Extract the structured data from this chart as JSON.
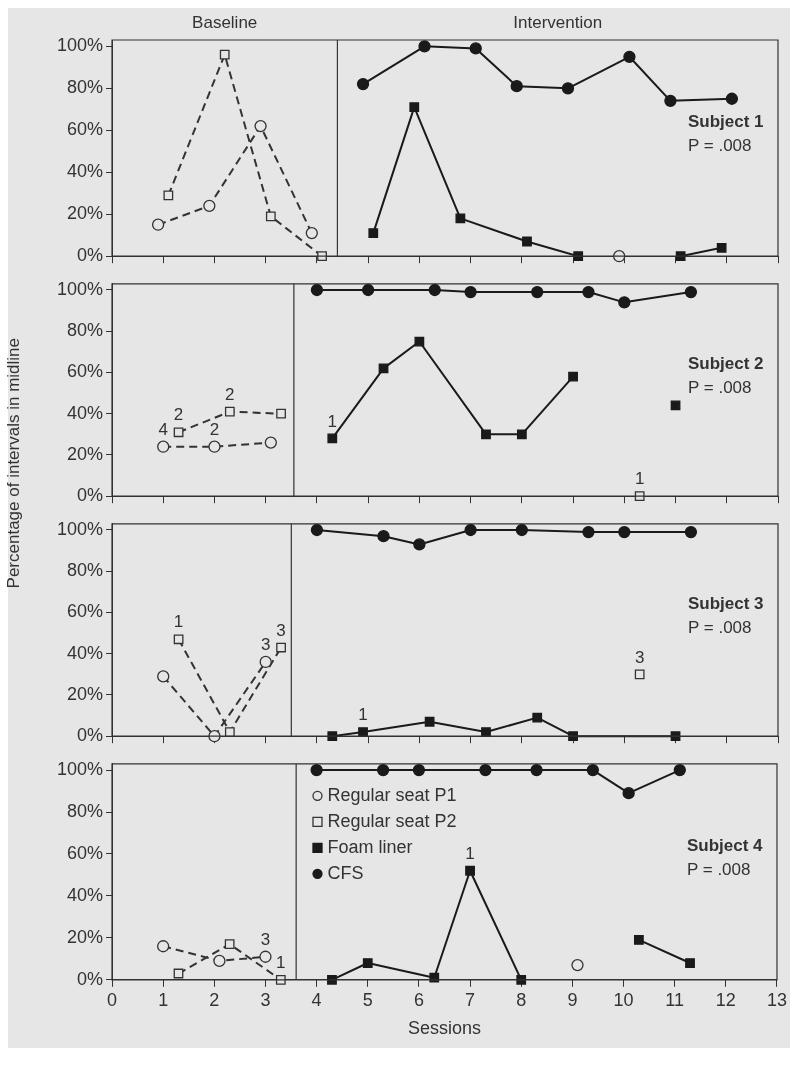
{
  "chart_data": [
    {
      "type": "line",
      "title": "Subject 1",
      "subtitle": "P = .008",
      "xlim": [
        0,
        13
      ],
      "ylim": [
        0,
        103
      ],
      "xticks": [
        {
          "value": 0,
          "label": null
        },
        {
          "value": 1,
          "label": null
        },
        {
          "value": 2,
          "label": null
        },
        {
          "value": 3,
          "label": null
        },
        {
          "value": 4,
          "label": null
        },
        {
          "value": 5,
          "label": null
        },
        {
          "value": 6,
          "label": null
        },
        {
          "value": 7,
          "label": null
        },
        {
          "value": 8,
          "label": null
        },
        {
          "value": 9,
          "label": null
        },
        {
          "value": 10,
          "label": null
        },
        {
          "value": 11,
          "label": null
        },
        {
          "value": 12,
          "label": null
        },
        {
          "value": 13,
          "label": null
        }
      ],
      "yticks": [
        {
          "value": 0,
          "label": "0%"
        },
        {
          "value": 20,
          "label": "20%"
        },
        {
          "value": 40,
          "label": "40%"
        },
        {
          "value": 60,
          "label": "60%"
        },
        {
          "value": 80,
          "label": "80%"
        },
        {
          "value": 100,
          "label": "100%"
        }
      ],
      "tick_labels": "y",
      "grid": false,
      "ref_lines": [
        {
          "axis": "x",
          "value": 4.4,
          "label": null,
          "color": "#333333"
        }
      ],
      "annotations": [
        "Baseline",
        "Intervention"
      ],
      "series": [
        {
          "color": "#333333",
          "marker": "circle",
          "line_style": "dashed",
          "x": [
            0.9,
            1.9,
            2.9,
            3.9,
            7,
            9.9
          ],
          "values": [
            15,
            24,
            62,
            11,
            null,
            0
          ]
        },
        {
          "color": "#333333",
          "marker": "square",
          "line_style": "dashed",
          "x": [
            1.1,
            2.2,
            3.1,
            4.1
          ],
          "values": [
            29,
            96,
            19,
            0
          ]
        },
        {
          "color": "#1a1a1a",
          "marker": "square",
          "line_style": "solid",
          "x": [
            5.1,
            5.9,
            6.8,
            8.1,
            9.1,
            10,
            11.1,
            11.9
          ],
          "values": [
            11,
            71,
            18,
            7,
            0,
            null,
            0,
            4
          ]
        },
        {
          "color": "#1a1a1a",
          "marker": "circle",
          "line_style": "solid",
          "x": [
            4.9,
            6.1,
            7.1,
            7.9,
            8.9,
            10.1,
            10.9,
            12.1
          ],
          "values": [
            82,
            100,
            99,
            81,
            80,
            95,
            74,
            75
          ]
        }
      ]
    },
    {
      "type": "line",
      "title": "Subject 2",
      "subtitle": "P = .008",
      "ylabel": "Percentage of intervals in midline",
      "xlim": [
        0,
        13
      ],
      "ylim": [
        0,
        103
      ],
      "xticks": [
        {
          "value": 0,
          "label": null
        },
        {
          "value": 1,
          "label": null
        },
        {
          "value": 2,
          "label": null
        },
        {
          "value": 3,
          "label": null
        },
        {
          "value": 4,
          "label": null
        },
        {
          "value": 5,
          "label": null
        },
        {
          "value": 6,
          "label": null
        },
        {
          "value": 7,
          "label": null
        },
        {
          "value": 8,
          "label": null
        },
        {
          "value": 9,
          "label": null
        },
        {
          "value": 10,
          "label": null
        },
        {
          "value": 11,
          "label": null
        },
        {
          "value": 12,
          "label": null
        },
        {
          "value": 13,
          "label": null
        }
      ],
      "yticks": [
        {
          "value": 0,
          "label": "0%"
        },
        {
          "value": 20,
          "label": "20%"
        },
        {
          "value": 40,
          "label": "40%"
        },
        {
          "value": 60,
          "label": "60%"
        },
        {
          "value": 80,
          "label": "80%"
        },
        {
          "value": 100,
          "label": "100%"
        }
      ],
      "tick_labels": "y",
      "grid": false,
      "ref_lines": [
        {
          "axis": "x",
          "value": 3.55,
          "label": null,
          "color": "#333333"
        }
      ],
      "annotations": [
        {
          "text": "4",
          "x": 1.0,
          "y": 24
        },
        {
          "text": "2",
          "x": 1.3,
          "y": 31
        },
        {
          "text": "2",
          "x": 2.0,
          "y": 24
        },
        {
          "text": "2",
          "x": 2.3,
          "y": 41
        },
        {
          "text": "1",
          "x": 4.3,
          "y": 28
        },
        {
          "text": "1",
          "x": 10.3,
          "y": 0
        }
      ],
      "series": [
        {
          "color": "#333333",
          "marker": "circle",
          "line_style": "dashed",
          "x": [
            1.0,
            2.0,
            3.1
          ],
          "values": [
            24,
            24,
            26
          ]
        },
        {
          "color": "#333333",
          "marker": "square",
          "line_style": "dashed",
          "x": [
            1.3,
            2.3,
            3.3,
            7,
            10.3
          ],
          "values": [
            31,
            41,
            40,
            null,
            0
          ]
        },
        {
          "color": "#1a1a1a",
          "marker": "square",
          "line_style": "solid",
          "x": [
            4.3,
            5.3,
            6.0,
            7.3,
            8.0,
            9.0,
            10,
            11.0
          ],
          "values": [
            28,
            62,
            75,
            30,
            30,
            58,
            null,
            44
          ]
        },
        {
          "color": "#1a1a1a",
          "marker": "circle",
          "line_style": "solid",
          "x": [
            4.0,
            5.0,
            6.3,
            7.0,
            8.3,
            9.3,
            10.0,
            11.3
          ],
          "values": [
            100,
            100,
            100,
            99,
            99,
            99,
            94,
            99
          ]
        }
      ]
    },
    {
      "type": "line",
      "title": "Subject 3",
      "subtitle": "P = .008",
      "xlim": [
        0,
        13
      ],
      "ylim": [
        0,
        103
      ],
      "xticks": [
        {
          "value": 0,
          "label": null
        },
        {
          "value": 1,
          "label": null
        },
        {
          "value": 2,
          "label": null
        },
        {
          "value": 3,
          "label": null
        },
        {
          "value": 4,
          "label": null
        },
        {
          "value": 5,
          "label": null
        },
        {
          "value": 6,
          "label": null
        },
        {
          "value": 7,
          "label": null
        },
        {
          "value": 8,
          "label": null
        },
        {
          "value": 9,
          "label": null
        },
        {
          "value": 10,
          "label": null
        },
        {
          "value": 11,
          "label": null
        },
        {
          "value": 12,
          "label": null
        },
        {
          "value": 13,
          "label": null
        }
      ],
      "yticks": [
        {
          "value": 0,
          "label": "0%"
        },
        {
          "value": 20,
          "label": "20%"
        },
        {
          "value": 40,
          "label": "40%"
        },
        {
          "value": 60,
          "label": "60%"
        },
        {
          "value": 80,
          "label": "80%"
        },
        {
          "value": 100,
          "label": "100%"
        }
      ],
      "tick_labels": "y",
      "grid": false,
      "ref_lines": [
        {
          "axis": "x",
          "value": 3.5,
          "label": null,
          "color": "#333333"
        }
      ],
      "annotations": [
        {
          "text": "1",
          "x": 1.3,
          "y": 47
        },
        {
          "text": "3",
          "x": 3.0,
          "y": 36
        },
        {
          "text": "3",
          "x": 3.3,
          "y": 43
        },
        {
          "text": "1",
          "x": 4.9,
          "y": 2
        },
        {
          "text": "3",
          "x": 10.3,
          "y": 30
        }
      ],
      "series": [
        {
          "color": "#333333",
          "marker": "circle",
          "line_style": "dashed",
          "x": [
            1.0,
            2.0,
            3.0
          ],
          "values": [
            29,
            0,
            36
          ]
        },
        {
          "color": "#333333",
          "marker": "square",
          "line_style": "dashed",
          "x": [
            1.3,
            2.3,
            3.3,
            7,
            10.3
          ],
          "values": [
            47,
            2,
            43,
            null,
            30
          ]
        },
        {
          "color": "#1a1a1a",
          "marker": "square",
          "line_style": "solid",
          "x": [
            4.3,
            4.9,
            6.2,
            7.3,
            8.3,
            9.0,
            11.0
          ],
          "values": [
            0,
            2,
            7,
            2,
            9,
            0,
            0
          ]
        },
        {
          "color": "#1a1a1a",
          "marker": "circle",
          "line_style": "solid",
          "x": [
            4.0,
            5.3,
            6.0,
            7.0,
            8.0,
            9.3,
            10.0,
            11.3
          ],
          "values": [
            100,
            97,
            93,
            100,
            100,
            99,
            99,
            99
          ]
        }
      ]
    },
    {
      "type": "line",
      "title": "Subject 4",
      "subtitle": "P = .008",
      "xlabel": "Sessions",
      "xlim": [
        0,
        13
      ],
      "ylim": [
        0,
        103
      ],
      "xticks": [
        0,
        1,
        2,
        3,
        4,
        5,
        6,
        7,
        8,
        9,
        10,
        11,
        12,
        13
      ],
      "yticks": [
        {
          "value": 0,
          "label": "0%"
        },
        {
          "value": 20,
          "label": "20%"
        },
        {
          "value": 40,
          "label": "40%"
        },
        {
          "value": 60,
          "label": "60%"
        },
        {
          "value": 80,
          "label": "80%"
        },
        {
          "value": 100,
          "label": "100%"
        }
      ],
      "grid": false,
      "legend": "top left",
      "ref_lines": [
        {
          "axis": "x",
          "value": 3.6,
          "label": null,
          "color": "#333333"
        }
      ],
      "annotations": [
        {
          "text": "3",
          "x": 3.0,
          "y": 11
        },
        {
          "text": "1",
          "x": 3.3,
          "y": 0
        },
        {
          "text": "1",
          "x": 7.0,
          "y": 52
        }
      ],
      "series": [
        {
          "name": "Regular seat P1",
          "color": "#333333",
          "marker": "circle",
          "line_style": "dashed",
          "x": [
            1.0,
            2.1,
            3.0,
            6,
            9.1
          ],
          "values": [
            16,
            9,
            11,
            null,
            7
          ]
        },
        {
          "name": "Regular seat P2",
          "color": "#333333",
          "marker": "square",
          "line_style": "dashed",
          "x": [
            1.3,
            2.3,
            3.3
          ],
          "values": [
            3,
            17,
            0
          ]
        },
        {
          "name": "Foam liner",
          "color": "#1a1a1a",
          "marker": "square",
          "line_style": "solid",
          "x": [
            4.3,
            5.0,
            6.3,
            7.0,
            8.0,
            9,
            10.3,
            11.3
          ],
          "values": [
            0,
            8,
            1,
            52,
            0,
            null,
            19,
            8
          ]
        },
        {
          "name": "CFS",
          "color": "#1a1a1a",
          "marker": "circle",
          "line_style": "solid",
          "x": [
            4.0,
            5.3,
            6.0,
            7.3,
            8.3,
            9.4,
            10.1,
            11.1
          ],
          "values": [
            100,
            100,
            100,
            100,
            100,
            100,
            89,
            100
          ]
        }
      ]
    }
  ]
}
